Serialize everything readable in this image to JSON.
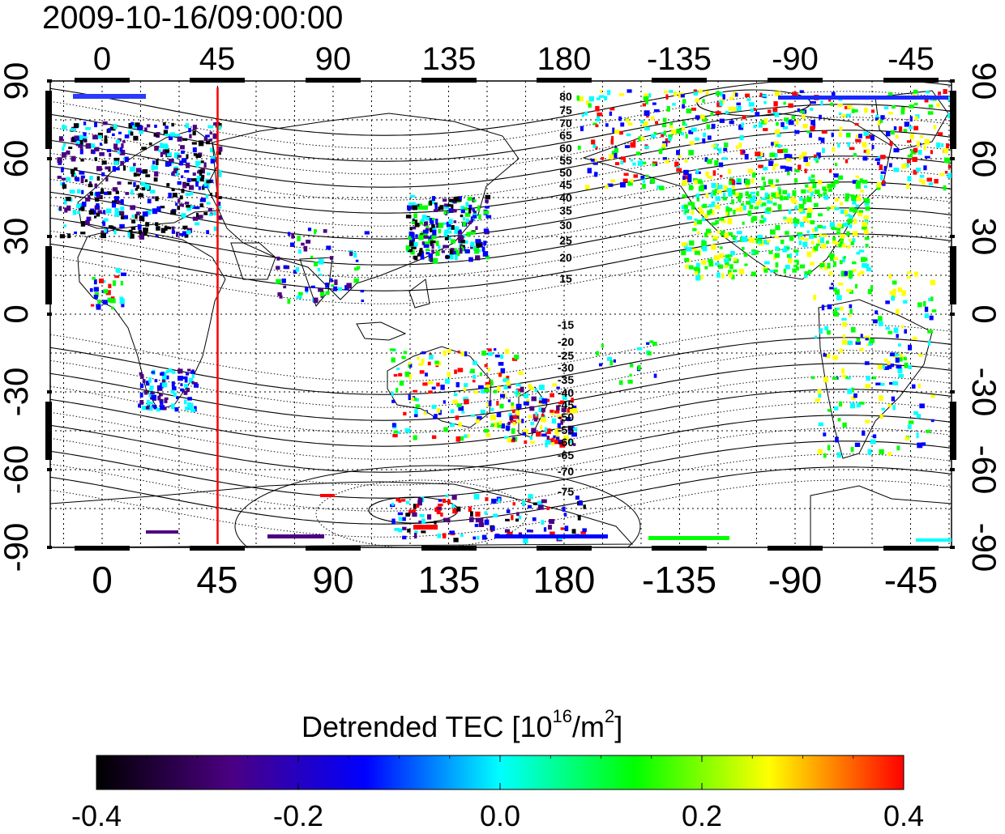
{
  "title": "2009-10-16/09:00:00",
  "map": {
    "top_ticks": [
      "0",
      "45",
      "90",
      "135",
      "180",
      "-135",
      "-90",
      "-45"
    ],
    "bottom_ticks": [
      "0",
      "45",
      "90",
      "135",
      "180",
      "-135",
      "-90",
      "-45"
    ],
    "left_ticks": [
      "90",
      "60",
      "30",
      "0",
      "-30",
      "-60",
      "-90"
    ],
    "right_ticks": [
      "90",
      "60",
      "30",
      "0",
      "-30",
      "-60",
      "-90"
    ],
    "contour_labels_north": [
      "80",
      "75",
      "70",
      "65",
      "60",
      "55",
      "50",
      "45",
      "40",
      "35",
      "30",
      "25",
      "20",
      "15"
    ],
    "contour_labels_south": [
      "-15",
      "-20",
      "-25",
      "-30",
      "-35",
      "-40",
      "-45",
      "-50",
      "-55",
      "-60",
      "-65",
      "-70",
      "-75"
    ],
    "marker_longitude": 45,
    "marker_color": "#ff0000"
  },
  "colorbar": {
    "label_main": "Detrended TEC  [10",
    "label_exp": "16",
    "label_unit": "/m",
    "label_exp2": "2",
    "label_close": "]",
    "ticks": [
      "-0.4",
      "-0.2",
      "0.0",
      "0.2",
      "0.4"
    ],
    "range": [
      -0.4,
      0.4
    ],
    "colors": [
      "#000000",
      "#4b0082",
      "#0000ff",
      "#00ffff",
      "#00ff00",
      "#ffff00",
      "#ff0000"
    ]
  }
}
